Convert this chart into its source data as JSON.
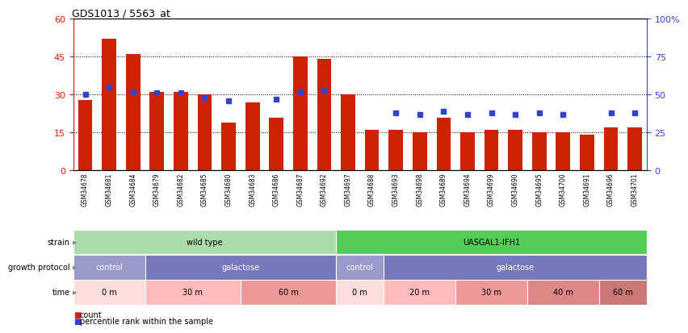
{
  "title": "GDS1013 / 5563_at",
  "samples": [
    "GSM34678",
    "GSM34681",
    "GSM34684",
    "GSM34679",
    "GSM34682",
    "GSM34685",
    "GSM34680",
    "GSM34683",
    "GSM34686",
    "GSM34687",
    "GSM34692",
    "GSM34697",
    "GSM34688",
    "GSM34693",
    "GSM34698",
    "GSM34689",
    "GSM34694",
    "GSM34699",
    "GSM34690",
    "GSM34695",
    "GSM34700",
    "GSM34691",
    "GSM34696",
    "GSM34701"
  ],
  "counts": [
    28,
    52,
    46,
    31,
    31,
    30,
    19,
    27,
    21,
    45,
    44,
    30,
    16,
    16,
    15,
    21,
    15,
    16,
    16,
    15,
    15,
    14,
    17,
    17
  ],
  "percentiles": [
    50,
    55,
    52,
    51,
    51,
    48,
    46,
    null,
    47,
    52,
    53,
    null,
    null,
    38,
    37,
    39,
    37,
    38,
    37,
    38,
    37,
    null,
    38,
    38
  ],
  "ylim_left": [
    0,
    60
  ],
  "ylim_right": [
    0,
    100
  ],
  "yticks_left": [
    0,
    15,
    30,
    45,
    60
  ],
  "yticks_right": [
    0,
    25,
    50,
    75,
    100
  ],
  "bar_color": "#cc2200",
  "dot_color": "#3344cc",
  "strain_regions": [
    {
      "label": "wild type",
      "start": 0,
      "end": 11,
      "color": "#aaddaa"
    },
    {
      "label": "UASGAL1-IFH1",
      "start": 11,
      "end": 24,
      "color": "#55cc55"
    }
  ],
  "protocol_regions": [
    {
      "label": "control",
      "start": 0,
      "end": 3,
      "color": "#9999cc"
    },
    {
      "label": "galactose",
      "start": 3,
      "end": 11,
      "color": "#7777bb"
    },
    {
      "label": "control",
      "start": 11,
      "end": 13,
      "color": "#9999cc"
    },
    {
      "label": "galactose",
      "start": 13,
      "end": 24,
      "color": "#7777bb"
    }
  ],
  "time_regions": [
    {
      "label": "0 m",
      "start": 0,
      "end": 3,
      "color": "#ffdddd"
    },
    {
      "label": "30 m",
      "start": 3,
      "end": 7,
      "color": "#ffbbbb"
    },
    {
      "label": "60 m",
      "start": 7,
      "end": 11,
      "color": "#ee9999"
    },
    {
      "label": "0 m",
      "start": 11,
      "end": 13,
      "color": "#ffdddd"
    },
    {
      "label": "20 m",
      "start": 13,
      "end": 16,
      "color": "#ffbbbb"
    },
    {
      "label": "30 m",
      "start": 16,
      "end": 19,
      "color": "#ee9999"
    },
    {
      "label": "40 m",
      "start": 19,
      "end": 22,
      "color": "#dd8888"
    },
    {
      "label": "60 m",
      "start": 22,
      "end": 24,
      "color": "#cc7777"
    }
  ],
  "legend_colors": [
    "#cc2200",
    "#3344cc"
  ],
  "legend_labels": [
    "count",
    "percentile rank within the sample"
  ]
}
